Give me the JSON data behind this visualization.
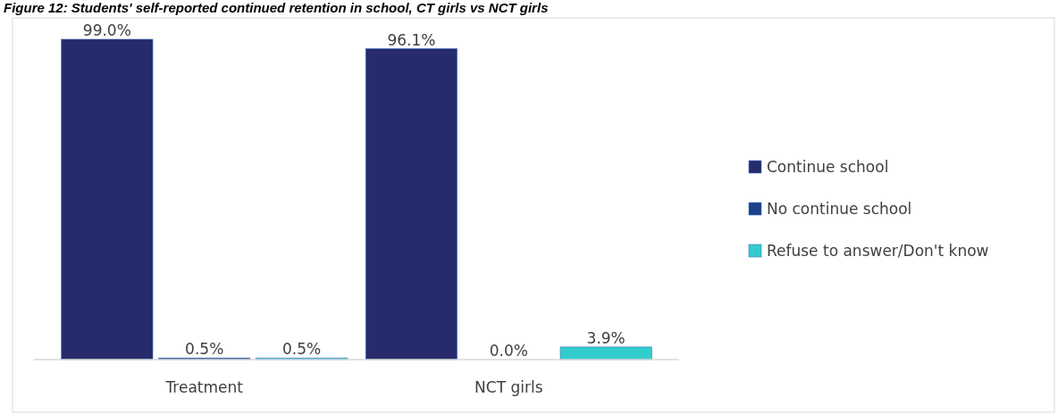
{
  "chart_data": {
    "type": "bar",
    "title": "Figure 12: Students' self-reported continued retention in school, CT girls vs NCT girls",
    "categories": [
      "Treatment",
      "NCT girls"
    ],
    "series": [
      {
        "name": "Continue school",
        "color": "#262b6b",
        "values": [
          99.0,
          96.1
        ],
        "value_labels": [
          "99.0%",
          "96.1%"
        ]
      },
      {
        "name": "No continue school",
        "color": "#1a428a",
        "values": [
          0.5,
          0.0
        ],
        "value_labels": [
          "0.5%",
          "0.0%"
        ]
      },
      {
        "name": "Refuse to answer/Don't know",
        "color": "#33cccc",
        "values": [
          0.5,
          3.9
        ],
        "value_labels": [
          "0.5%",
          "3.9%"
        ]
      }
    ],
    "legend": "right"
  }
}
